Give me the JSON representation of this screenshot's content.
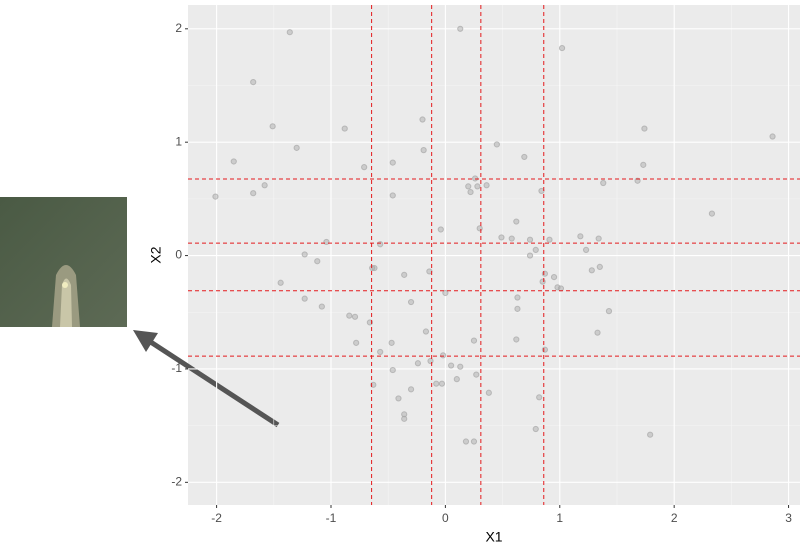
{
  "chart_data": {
    "type": "scatter",
    "x_label": "X1",
    "y_label": "X2",
    "xlim": [
      -2.25,
      3.1
    ],
    "ylim": [
      -2.2,
      2.21
    ],
    "xticks": [
      -2,
      -1,
      0,
      1,
      2,
      3
    ],
    "yticks": [
      -2,
      -1,
      0,
      1,
      2
    ],
    "grid": true,
    "color": "#a6a6a6",
    "line_color": "#e41a1c",
    "xlines": [
      -0.645,
      -0.12,
      0.31,
      0.86
    ],
    "ylines": [
      0.675,
      0.11,
      -0.31,
      -0.887
    ],
    "x": [
      -2.01,
      -1.85,
      -1.68,
      -1.68,
      -1.58,
      -1.51,
      -1.36,
      -1.44,
      -1.3,
      -1.23,
      -1.23,
      -1.12,
      -1.08,
      -1.04,
      -0.88,
      -0.84,
      -0.79,
      -0.78,
      -0.71,
      -0.66,
      -0.64,
      -0.62,
      -0.63,
      -0.57,
      -0.57,
      -0.46,
      -0.46,
      -0.47,
      -0.46,
      -0.41,
      -0.36,
      -0.36,
      -0.36,
      -0.3,
      -0.3,
      -0.24,
      -0.2,
      -0.19,
      -0.17,
      -0.14,
      -0.13,
      -0.08,
      -0.04,
      -0.03,
      0.0,
      -0.02,
      0.05,
      0.1,
      0.13,
      0.13,
      0.2,
      0.22,
      0.26,
      0.25,
      0.18,
      0.25,
      0.28,
      0.27,
      0.3,
      0.36,
      0.38,
      0.45,
      0.49,
      0.58,
      0.62,
      0.63,
      0.63,
      0.62,
      0.69,
      0.74,
      0.74,
      0.79,
      0.79,
      0.82,
      0.84,
      0.85,
      0.87,
      0.87,
      0.91,
      0.95,
      0.98,
      1.01,
      1.02,
      1.18,
      1.23,
      1.28,
      1.33,
      1.34,
      1.35,
      1.38,
      1.43,
      1.68,
      1.73,
      1.74,
      1.79,
      2.33,
      2.86
    ],
    "y": [
      0.52,
      0.83,
      1.53,
      0.55,
      0.62,
      1.14,
      1.97,
      -0.24,
      0.95,
      0.01,
      -0.38,
      -0.05,
      -0.45,
      0.12,
      1.12,
      -0.53,
      -0.54,
      -0.77,
      0.78,
      -0.59,
      -0.11,
      -0.11,
      -1.14,
      0.1,
      -0.85,
      0.82,
      0.53,
      -0.77,
      -1.01,
      -1.26,
      -0.17,
      -1.4,
      -1.44,
      -0.41,
      -1.18,
      -0.95,
      1.2,
      0.93,
      -0.67,
      -0.14,
      -0.93,
      -1.13,
      0.23,
      -1.13,
      -0.33,
      -0.88,
      -0.97,
      -1.09,
      2.0,
      -0.98,
      0.61,
      0.56,
      0.68,
      -1.64,
      -1.64,
      -0.75,
      0.61,
      -1.05,
      0.24,
      0.62,
      -1.21,
      0.98,
      0.16,
      0.15,
      0.3,
      -0.37,
      -0.47,
      -0.74,
      0.87,
      0.0,
      0.14,
      0.05,
      -1.53,
      -1.25,
      0.57,
      -0.23,
      -0.83,
      -0.16,
      0.14,
      -0.19,
      -0.28,
      -0.29,
      1.83,
      0.17,
      0.05,
      -0.13,
      -0.68,
      0.15,
      -0.1,
      0.64,
      -0.49,
      0.66,
      0.8,
      1.12,
      -1.58,
      0.37,
      1.05
    ]
  }
}
